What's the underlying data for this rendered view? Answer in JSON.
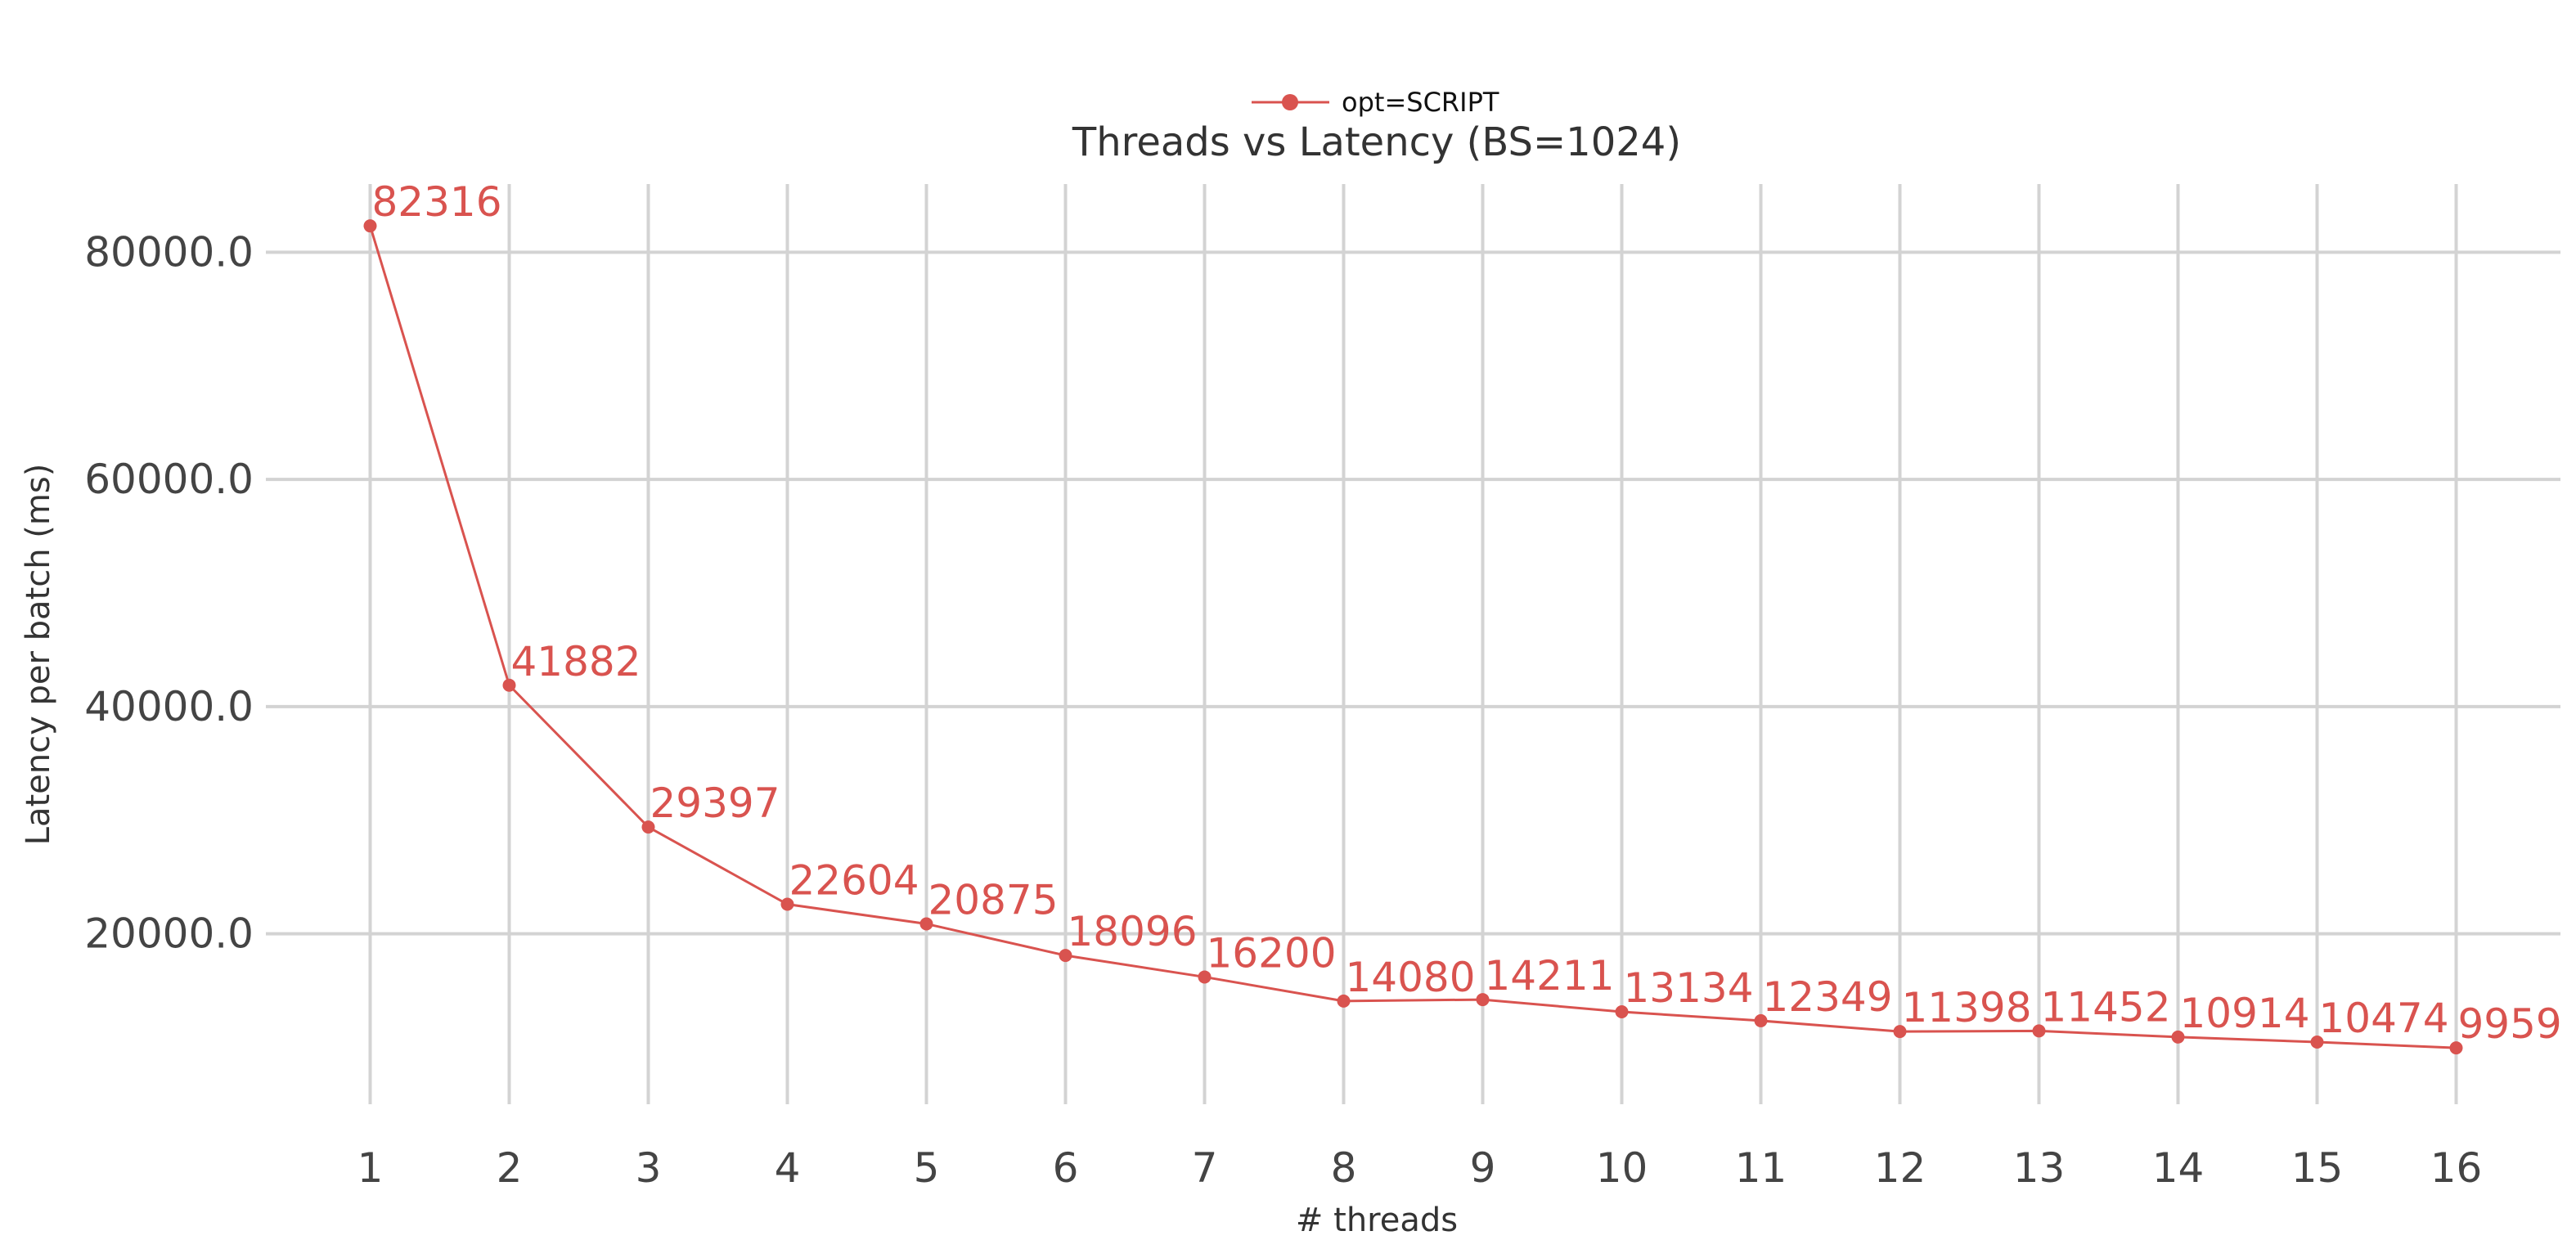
{
  "colors": {
    "series": "#d9534f",
    "grid": "#d3d3d3",
    "text": "#333333"
  },
  "chart_data": {
    "type": "line",
    "title": "Threads vs Latency (BS=1024)",
    "xlabel": "# threads",
    "ylabel": "Latency per batch (ms)",
    "x": [
      1,
      2,
      3,
      4,
      5,
      6,
      7,
      8,
      9,
      10,
      11,
      12,
      13,
      14,
      15,
      16
    ],
    "x_tick_labels": [
      "1",
      "2",
      "3",
      "4",
      "5",
      "6",
      "7",
      "8",
      "9",
      "10",
      "11",
      "12",
      "13",
      "14",
      "15",
      "16"
    ],
    "y_ticks": [
      20000,
      40000,
      60000,
      80000
    ],
    "y_tick_labels": [
      "20000.0",
      "40000.0",
      "60000.0",
      "80000.0"
    ],
    "xlim": [
      0.25,
      16.75
    ],
    "ylim": [
      5000,
      86000
    ],
    "grid": true,
    "legend_position": "top-center",
    "series": [
      {
        "name": "opt=SCRIPT",
        "marker": "circle",
        "values": [
          82316,
          41882,
          29397,
          22604,
          20875,
          18096,
          16200,
          14080,
          14211,
          13134,
          12349,
          11398,
          11452,
          10914,
          10474,
          9959
        ],
        "value_labels": [
          "82316",
          "41882",
          "29397",
          "22604",
          "20875",
          "18096",
          "16200",
          "14080",
          "14211",
          "13134",
          "12349",
          "11398",
          "11452",
          "10914",
          "10474",
          "9959"
        ]
      }
    ]
  }
}
